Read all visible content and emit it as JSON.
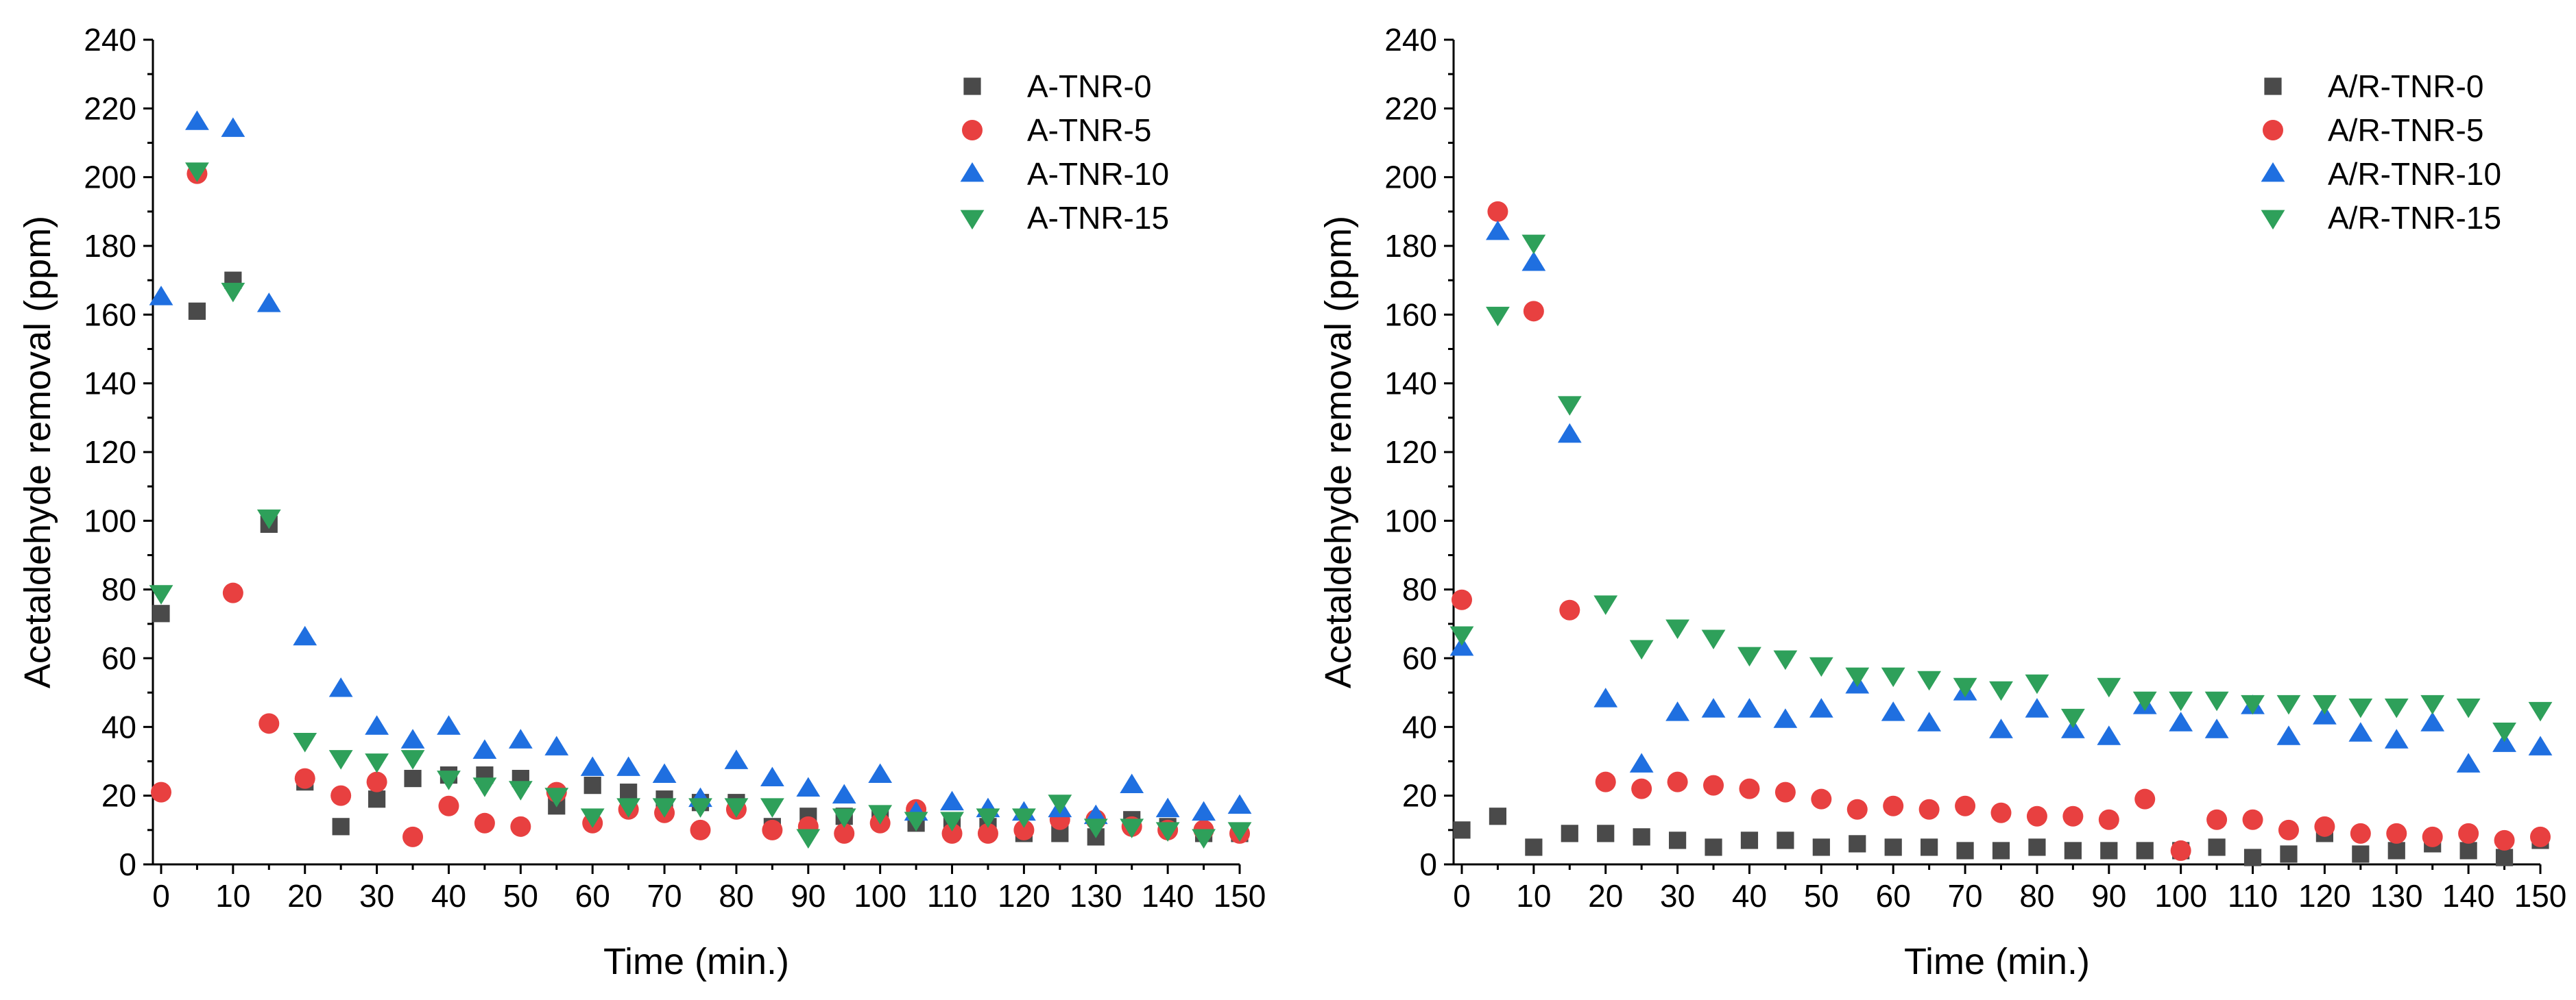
{
  "chart_data": [
    {
      "type": "scatter",
      "xlabel": "Time (min.)",
      "ylabel": "Acetaldehyde removal (ppm)",
      "xlim": [
        0,
        150
      ],
      "ylim": [
        0,
        240
      ],
      "xticks": [
        0,
        10,
        20,
        30,
        40,
        50,
        60,
        70,
        80,
        90,
        100,
        110,
        120,
        130,
        140,
        150
      ],
      "yticks": [
        0,
        20,
        40,
        60,
        80,
        100,
        120,
        140,
        160,
        180,
        200,
        220,
        240
      ],
      "grid": false,
      "legend_position": "top-right",
      "x": [
        0,
        5,
        10,
        15,
        20,
        25,
        30,
        35,
        40,
        45,
        50,
        55,
        60,
        65,
        70,
        75,
        80,
        85,
        90,
        95,
        100,
        105,
        110,
        115,
        120,
        125,
        130,
        135,
        140,
        145,
        150
      ],
      "series": [
        {
          "name": "A-TNR-0",
          "marker": "square",
          "color": "#4a4a4a",
          "values": [
            73,
            161,
            170,
            99,
            24,
            11,
            19,
            25,
            26,
            26,
            25,
            17,
            23,
            21,
            19,
            18,
            18,
            11,
            14,
            14,
            14,
            12,
            12,
            11,
            9,
            9,
            8,
            13,
            11,
            9,
            9
          ]
        },
        {
          "name": "A-TNR-5",
          "marker": "circle",
          "color": "#e84040",
          "values": [
            21,
            201,
            79,
            41,
            25,
            20,
            24,
            8,
            17,
            12,
            11,
            21,
            12,
            16,
            15,
            10,
            16,
            10,
            11,
            9,
            12,
            16,
            9,
            9,
            10,
            13,
            13,
            11,
            10,
            10,
            9
          ]
        },
        {
          "name": "A-TNR-10",
          "marker": "triangle-up",
          "color": "#1f6fe0",
          "values": [
            165,
            216,
            214,
            163,
            66,
            51,
            40,
            36,
            40,
            33,
            36,
            34,
            28,
            28,
            26,
            19,
            30,
            25,
            22,
            20,
            26,
            15,
            18,
            16,
            15,
            16,
            14,
            23,
            16,
            15,
            17
          ]
        },
        {
          "name": "A-TNR-15",
          "marker": "triangle-down",
          "color": "#2ea05a",
          "values": [
            79,
            202,
            167,
            101,
            36,
            31,
            30,
            31,
            25,
            23,
            22,
            20,
            14,
            17,
            17,
            17,
            17,
            17,
            8,
            14,
            15,
            13,
            13,
            14,
            14,
            18,
            11,
            11,
            10,
            8,
            10
          ]
        }
      ]
    },
    {
      "type": "scatter",
      "xlabel": "Time (min.)",
      "ylabel": "Acetaldehyde removal (ppm)",
      "xlim": [
        0,
        150
      ],
      "ylim": [
        0,
        240
      ],
      "xticks": [
        0,
        10,
        20,
        30,
        40,
        50,
        60,
        70,
        80,
        90,
        100,
        110,
        120,
        130,
        140,
        150
      ],
      "yticks": [
        0,
        20,
        40,
        60,
        80,
        100,
        120,
        140,
        160,
        180,
        200,
        220,
        240
      ],
      "grid": false,
      "legend_position": "top-right",
      "x": [
        0,
        5,
        10,
        15,
        20,
        25,
        30,
        35,
        40,
        45,
        50,
        55,
        60,
        65,
        70,
        75,
        80,
        85,
        90,
        95,
        100,
        105,
        110,
        115,
        120,
        125,
        130,
        135,
        140,
        145,
        150
      ],
      "series": [
        {
          "name": "A/R-TNR-0",
          "marker": "square",
          "color": "#4a4a4a",
          "values": [
            10,
            14,
            5,
            9,
            9,
            8,
            7,
            5,
            7,
            7,
            5,
            6,
            5,
            5,
            4,
            4,
            5,
            4,
            4,
            4,
            4,
            5,
            2,
            3,
            9,
            3,
            4,
            6,
            4,
            2,
            7
          ]
        },
        {
          "name": "A/R-TNR-5",
          "marker": "circle",
          "color": "#e84040",
          "values": [
            77,
            190,
            161,
            74,
            24,
            22,
            24,
            23,
            22,
            21,
            19,
            16,
            17,
            16,
            17,
            15,
            14,
            14,
            13,
            19,
            4,
            13,
            13,
            10,
            11,
            9,
            9,
            8,
            9,
            7,
            8
          ]
        },
        {
          "name": "A/R-TNR-10",
          "marker": "triangle-up",
          "color": "#1f6fe0",
          "values": [
            63,
            184,
            175,
            125,
            48,
            29,
            44,
            45,
            45,
            42,
            45,
            52,
            44,
            41,
            50,
            39,
            45,
            39,
            37,
            46,
            41,
            39,
            46,
            37,
            43,
            38,
            36,
            41,
            29,
            35,
            34
          ]
        },
        {
          "name": "A/R-TNR-15",
          "marker": "triangle-down",
          "color": "#2ea05a",
          "values": [
            67,
            160,
            181,
            134,
            76,
            63,
            69,
            66,
            61,
            60,
            58,
            55,
            55,
            54,
            52,
            51,
            53,
            43,
            52,
            48,
            48,
            48,
            47,
            47,
            47,
            46,
            46,
            47,
            46,
            39,
            45
          ]
        }
      ]
    }
  ]
}
